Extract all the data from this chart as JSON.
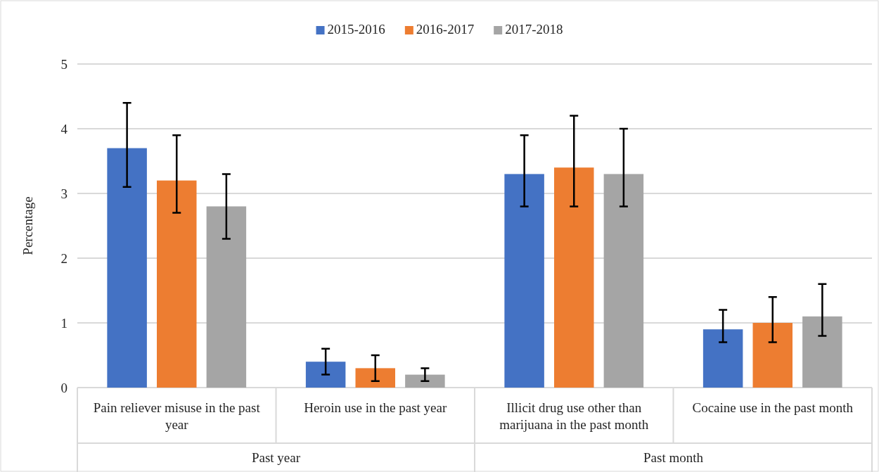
{
  "chart_data": {
    "type": "bar",
    "ylabel": "Percentage",
    "categories": [
      "Pain reliever misuse in the past year",
      "Heroin use in the past year",
      "Illicit drug use other than marijuana in the past month",
      "Cocaine use in the past month"
    ],
    "series": [
      {
        "name": "2015-2016",
        "color": "#4472c4",
        "values": [
          3.7,
          0.4,
          3.3,
          0.9
        ],
        "errors": [
          [
            3.1,
            4.4
          ],
          [
            0.2,
            0.6
          ],
          [
            2.8,
            3.9
          ],
          [
            0.7,
            1.2
          ]
        ]
      },
      {
        "name": "2016-2017",
        "color": "#ed7d31",
        "values": [
          3.2,
          0.3,
          3.4,
          1.0
        ],
        "errors": [
          [
            2.7,
            3.9
          ],
          [
            0.1,
            0.5
          ],
          [
            2.8,
            4.2
          ],
          [
            0.7,
            1.4
          ]
        ]
      },
      {
        "name": "2017-2018",
        "color": "#a5a5a5",
        "values": [
          2.8,
          0.2,
          3.3,
          1.1
        ],
        "errors": [
          [
            2.3,
            3.3
          ],
          [
            0.1,
            0.3
          ],
          [
            2.8,
            4.0
          ],
          [
            0.8,
            1.6
          ]
        ]
      }
    ],
    "annotations": [
      "Past year",
      "Past month"
    ],
    "ylim": [
      0,
      5
    ],
    "yticks": [
      0,
      1,
      2,
      3,
      4,
      5
    ],
    "grid": "y",
    "legend": "top"
  }
}
